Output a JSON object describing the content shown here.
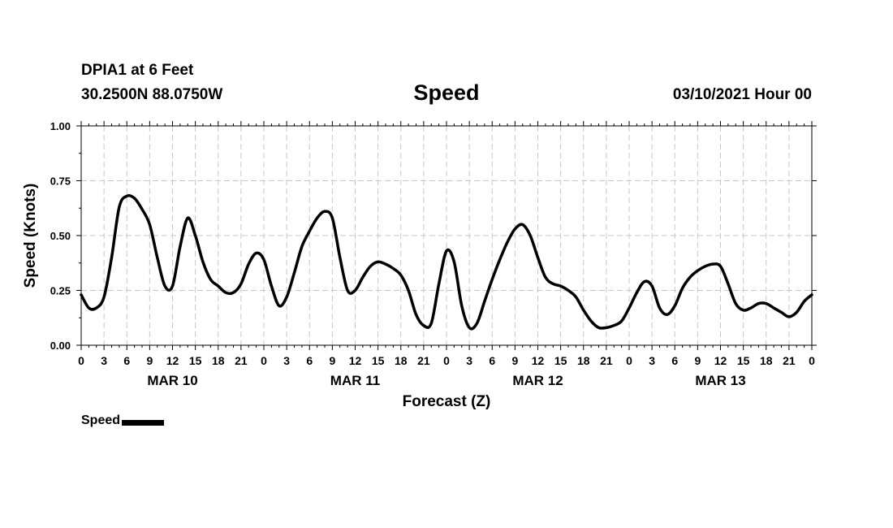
{
  "header": {
    "station": "DPIA1 at 6 Feet",
    "coords": "30.2500N 88.0750W",
    "run": "03/10/2021 Hour 00"
  },
  "chart_data": {
    "type": "line",
    "title": "Speed",
    "ylabel": "Speed (Knots)",
    "xlabel": "Forecast (Z)",
    "ylim": [
      0,
      1
    ],
    "xlim_hours": [
      0,
      96
    ],
    "y_ticks": [
      "0.00",
      "0.25",
      "0.50",
      "0.75",
      "1.00"
    ],
    "x_tick_labels": [
      "0",
      "3",
      "6",
      "9",
      "12",
      "15",
      "18",
      "21",
      "0",
      "3",
      "6",
      "9",
      "12",
      "15",
      "18",
      "21",
      "0",
      "3",
      "6",
      "9",
      "12",
      "15",
      "18",
      "21",
      "0",
      "3",
      "6",
      "9",
      "12",
      "15",
      "18",
      "21",
      "0"
    ],
    "date_labels": [
      {
        "label": "MAR 10",
        "hour": 12
      },
      {
        "label": "MAR 11",
        "hour": 36
      },
      {
        "label": "MAR 12",
        "hour": 60
      },
      {
        "label": "MAR 13",
        "hour": 84
      }
    ],
    "grid": true,
    "legend_position": "bottom-left",
    "series": [
      {
        "name": "Speed",
        "color": "#000000",
        "x": [
          0,
          1,
          2,
          3,
          4,
          5,
          6,
          7,
          8,
          9,
          10,
          11,
          12,
          13,
          14,
          15,
          16,
          17,
          18,
          19,
          20,
          21,
          22,
          23,
          24,
          25,
          26,
          27,
          28,
          29,
          30,
          31,
          32,
          33,
          34,
          35,
          36,
          37,
          38,
          39,
          40,
          41,
          42,
          43,
          44,
          45,
          46,
          47,
          48,
          49,
          50,
          51,
          52,
          53,
          54,
          55,
          56,
          57,
          58,
          59,
          60,
          61,
          62,
          63,
          64,
          65,
          66,
          67,
          68,
          69,
          70,
          71,
          72,
          73,
          74,
          75,
          76,
          77,
          78,
          79,
          80,
          81,
          82,
          83,
          84,
          85,
          86,
          87,
          88,
          89,
          90,
          91,
          92,
          93,
          94,
          95,
          96
        ],
        "y": [
          0.23,
          0.17,
          0.17,
          0.22,
          0.4,
          0.63,
          0.68,
          0.67,
          0.62,
          0.55,
          0.4,
          0.27,
          0.27,
          0.45,
          0.58,
          0.5,
          0.38,
          0.3,
          0.27,
          0.24,
          0.24,
          0.28,
          0.37,
          0.42,
          0.39,
          0.27,
          0.18,
          0.22,
          0.33,
          0.45,
          0.52,
          0.58,
          0.61,
          0.58,
          0.4,
          0.25,
          0.25,
          0.31,
          0.36,
          0.38,
          0.37,
          0.35,
          0.32,
          0.25,
          0.14,
          0.09,
          0.1,
          0.28,
          0.43,
          0.38,
          0.18,
          0.08,
          0.1,
          0.2,
          0.3,
          0.39,
          0.47,
          0.53,
          0.55,
          0.5,
          0.4,
          0.31,
          0.28,
          0.27,
          0.25,
          0.22,
          0.16,
          0.11,
          0.08,
          0.08,
          0.09,
          0.11,
          0.17,
          0.24,
          0.29,
          0.27,
          0.17,
          0.14,
          0.18,
          0.26,
          0.31,
          0.34,
          0.36,
          0.37,
          0.36,
          0.28,
          0.19,
          0.16,
          0.17,
          0.19,
          0.19,
          0.17,
          0.15,
          0.13,
          0.15,
          0.2,
          0.23
        ]
      }
    ]
  }
}
